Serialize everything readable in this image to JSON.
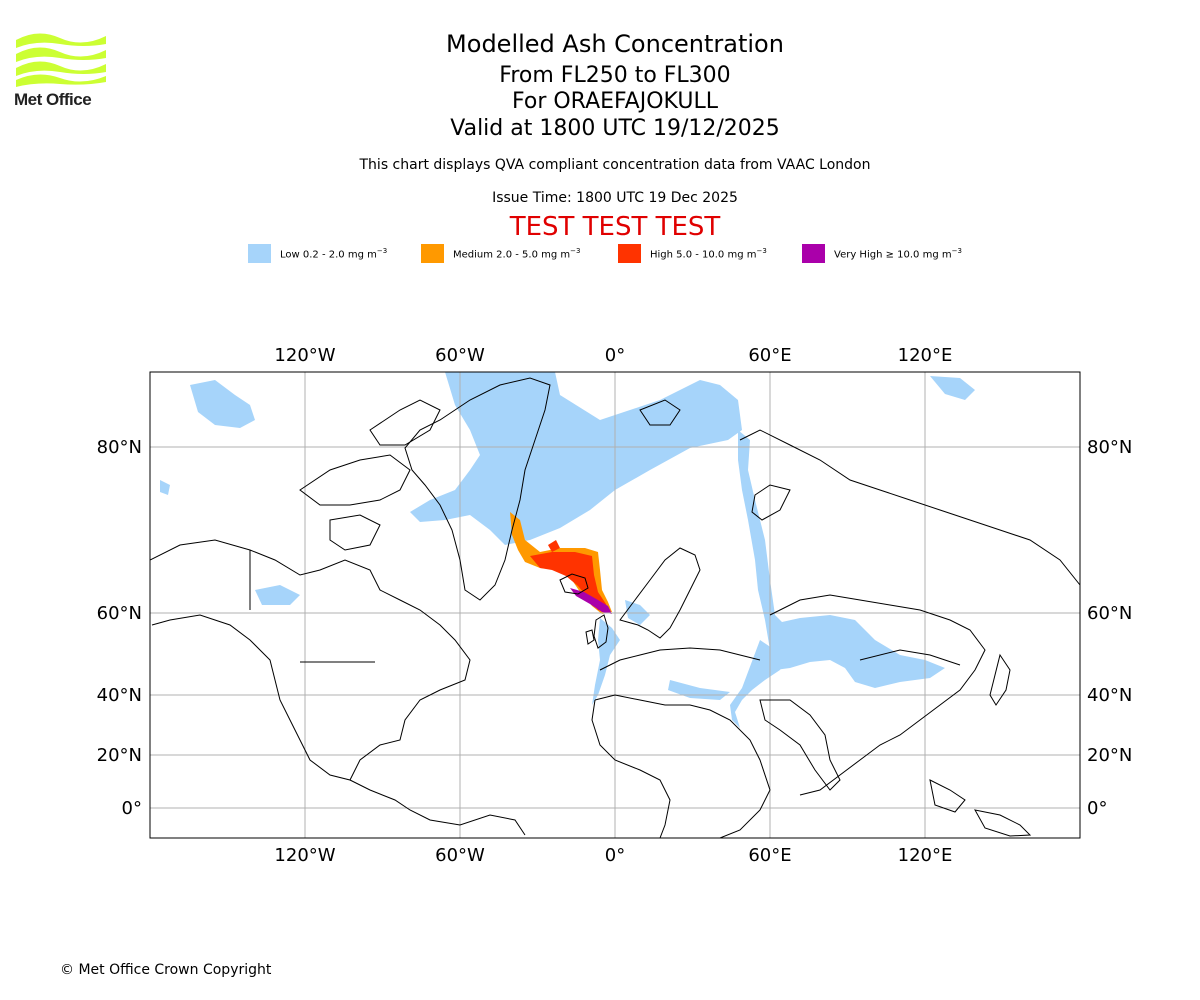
{
  "logo": {
    "text": "Met Office",
    "color": "#ccff33"
  },
  "title": {
    "main": "Modelled Ash Concentration",
    "levels": "From FL250 to FL300",
    "volcano": "For ORAEFAJOKULL",
    "valid": "Valid at 1800 UTC 19/12/2025"
  },
  "subtitle": {
    "description": "This chart displays QVA compliant concentration data from VAAC London",
    "issue_time": "Issue Time: 1800 UTC 19 Dec 2025"
  },
  "test_banner": {
    "text": "TEST TEST TEST",
    "color": "#e00000"
  },
  "legend": [
    {
      "label": "Low 0.2 - 2.0 mg m",
      "unit_sup": "−3",
      "color": "#a6d4fa"
    },
    {
      "label": "Medium 2.0 - 5.0 mg m",
      "unit_sup": "−3",
      "color": "#ff9900"
    },
    {
      "label": "High 5.0 - 10.0 mg m",
      "unit_sup": "−3",
      "color": "#ff3300"
    },
    {
      "label": "Very High  ≥  10.0 mg m",
      "unit_sup": "−3",
      "color": "#aa00aa"
    }
  ],
  "map": {
    "lon_ticks": [
      "120°W",
      "60°W",
      "0°",
      "60°E",
      "120°E"
    ],
    "lat_ticks": [
      "80°N",
      "60°N",
      "40°N",
      "20°N",
      "0°"
    ],
    "gridlines": true
  },
  "copyright": "© Met Office Crown Copyright"
}
